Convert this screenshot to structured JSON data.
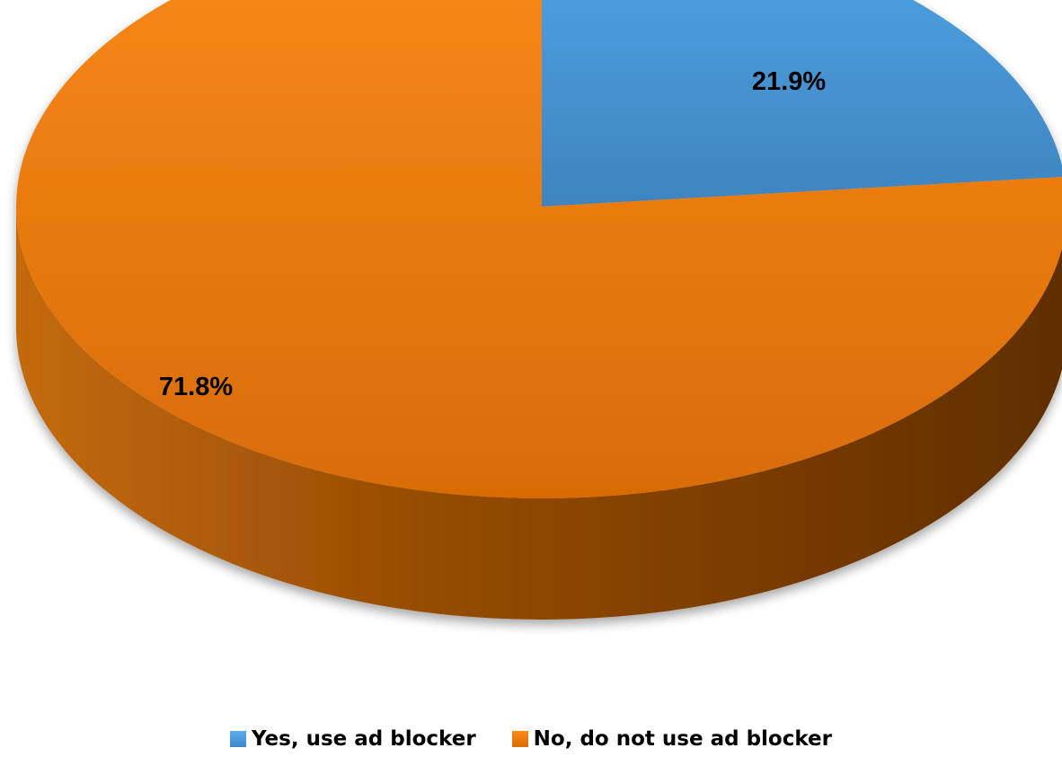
{
  "chart_data": {
    "type": "pie",
    "style": "3d",
    "title": "",
    "legend_position": "bottom",
    "slices": [
      {
        "label": "Yes, use ad blocker",
        "value": 21.9,
        "value_label": "21.9%",
        "color": "#4a9be0"
      },
      {
        "label": "No, do not use ad blocker",
        "value": 71.8,
        "value_label": "71.8%",
        "color": "#f08418"
      }
    ]
  }
}
